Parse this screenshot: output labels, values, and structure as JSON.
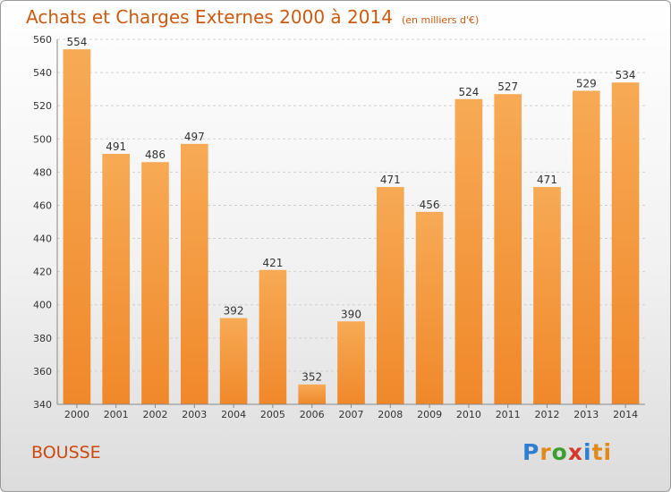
{
  "chart_data": {
    "type": "bar",
    "title": "Achats et Charges Externes 2000 à 2014",
    "subtitle": "(en milliers d'€)",
    "categories": [
      "2000",
      "2001",
      "2002",
      "2003",
      "2004",
      "2005",
      "2006",
      "2007",
      "2008",
      "2009",
      "2010",
      "2011",
      "2012",
      "2013",
      "2014"
    ],
    "values": [
      554,
      491,
      486,
      497,
      392,
      421,
      352,
      390,
      471,
      456,
      524,
      527,
      471,
      529,
      534
    ],
    "ylim": [
      340,
      560
    ],
    "yticks": [
      340,
      360,
      380,
      400,
      420,
      440,
      460,
      480,
      500,
      520,
      540,
      560
    ],
    "grid": true,
    "bar_color": "#f0882a",
    "bar_color_light": "#f7aa55"
  },
  "place_label": "BOUSSE",
  "logo": {
    "text": "Proxiti",
    "letters": [
      "P",
      "r",
      "o",
      "x",
      "i",
      "ti"
    ]
  }
}
